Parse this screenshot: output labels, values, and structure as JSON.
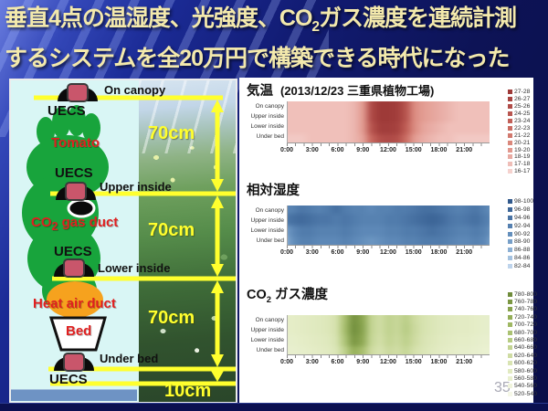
{
  "slide": {
    "title_line1_pre": "垂直4点の温湿度、光強度、CO",
    "title_line1_sub": "2",
    "title_line1_post": "ガス濃度を連続計測",
    "title_line2": "するシステムを全20万円で構築できる時代になった",
    "page_number": "35"
  },
  "diagram": {
    "on_canopy": "On  canopy",
    "uecs_top": "UECS",
    "tomato": "Tomato",
    "uecs_upper": "UECS",
    "upper_inside": "Upper inside",
    "co2_duct_pre": "CO",
    "co2_duct_sub": "2",
    "co2_duct_post": " gas duct",
    "uecs_lower": "UECS",
    "lower_inside": "Lower inside",
    "heat_air_duct": "Heat air duct",
    "bed": "Bed",
    "under_bed": "Under bed",
    "uecs_under": "UECS",
    "dim_70cm_1": "70cm",
    "dim_70cm_2": "70cm",
    "dim_70cm_3": "70cm",
    "dim_10cm": "10cm"
  },
  "chart_data": [
    {
      "type": "heatmap",
      "title_pre": "気温",
      "title_sub": "",
      "title_post": "",
      "subtitle": "(2013/12/23 三重県植物工場)",
      "rows": [
        "On canopy",
        "Upper inside",
        "Lower inside",
        "Under bed"
      ],
      "x_tick_labels": [
        "0:00",
        "3:00",
        "6:00",
        "9:00",
        "12:00",
        "15:00",
        "18:00",
        "21:00"
      ],
      "x_tick_hours": [
        0,
        3,
        6,
        9,
        12,
        15,
        18,
        21
      ],
      "x_range_hours": [
        0,
        24
      ],
      "scale": {
        "min": 16,
        "max": 28,
        "colors": [
          "#F5D2CE",
          "#EFBEB8",
          "#E8AAA2",
          "#E1988E",
          "#DA887C",
          "#D2796E",
          "#CA6C62",
          "#C26058",
          "#B95650",
          "#B04C48",
          "#A74340",
          "#9E3A38"
        ]
      },
      "series": [
        {
          "name": "On canopy",
          "values": [
            17,
            17,
            17,
            17,
            17,
            17,
            17,
            17,
            17.5,
            19,
            26,
            28,
            28,
            27.5,
            25,
            20,
            19,
            18.5,
            18,
            17.5,
            17,
            17,
            17,
            17,
            17
          ]
        },
        {
          "name": "Upper inside",
          "values": [
            17,
            17,
            17,
            17,
            17,
            17,
            17,
            17,
            17.5,
            19,
            26,
            28,
            28,
            27.5,
            25,
            20,
            19,
            18.5,
            18,
            17.5,
            17,
            17,
            17,
            17,
            17
          ]
        },
        {
          "name": "Lower inside",
          "values": [
            17,
            17,
            17,
            17,
            17,
            17,
            17,
            17,
            17.5,
            19,
            25,
            27.5,
            27.5,
            27,
            24,
            20,
            18.5,
            18,
            17.5,
            17,
            17,
            17,
            17,
            17,
            17
          ]
        },
        {
          "name": "Under bed",
          "values": [
            16.5,
            16.5,
            16.5,
            17,
            17,
            17,
            17,
            17,
            17.5,
            18.5,
            23,
            25.5,
            26,
            25.5,
            22.5,
            19,
            18,
            17.5,
            17,
            17,
            16.5,
            16.5,
            16.5,
            16.5,
            16.5
          ]
        }
      ],
      "legend": [
        {
          "label": "27-28",
          "color": "#9E3A38"
        },
        {
          "label": "26-27",
          "color": "#A74340"
        },
        {
          "label": "25-26",
          "color": "#B04C48"
        },
        {
          "label": "24-25",
          "color": "#B95650"
        },
        {
          "label": "23-24",
          "color": "#C26058"
        },
        {
          "label": "22-23",
          "color": "#CA6C62"
        },
        {
          "label": "21-22",
          "color": "#D2796E"
        },
        {
          "label": "20-21",
          "color": "#DA887C"
        },
        {
          "label": "19-20",
          "color": "#E1988E"
        },
        {
          "label": "18-19",
          "color": "#E8AAA2"
        },
        {
          "label": "17-18",
          "color": "#EFBEB8"
        },
        {
          "label": "16-17",
          "color": "#F5D2CE"
        }
      ]
    },
    {
      "type": "heatmap",
      "title_pre": "相対湿度",
      "title_sub": "",
      "title_post": "",
      "subtitle": "",
      "rows": [
        "On canopy",
        "Upper inside",
        "Lower inside",
        "Under bed"
      ],
      "x_tick_labels": [
        "0:00",
        "3:00",
        "6:00",
        "9:00",
        "12:00",
        "15:00",
        "18:00",
        "21:00"
      ],
      "x_tick_hours": [
        0,
        3,
        6,
        9,
        12,
        15,
        18,
        21
      ],
      "x_range_hours": [
        0,
        24
      ],
      "scale": {
        "min": 82,
        "max": 100,
        "colors": [
          "#BED4EC",
          "#A4C2E0",
          "#8CB0D4",
          "#779FC8",
          "#648FBC",
          "#5580B0",
          "#4973A4",
          "#3D6698",
          "#31598C"
        ]
      },
      "series": [
        {
          "name": "On canopy",
          "values": [
            92,
            93,
            95,
            94,
            93,
            94,
            96,
            94,
            93,
            93,
            92,
            93,
            93,
            94,
            94,
            95,
            96,
            96,
            95,
            94,
            93,
            94,
            95,
            93,
            91
          ]
        },
        {
          "name": "Upper inside",
          "values": [
            94,
            96,
            97,
            96,
            95,
            95,
            94,
            95,
            94,
            93,
            93,
            93,
            94,
            94,
            95,
            96,
            97,
            98,
            97,
            95,
            94,
            95,
            96,
            94,
            92
          ]
        },
        {
          "name": "Lower inside",
          "values": [
            88,
            92,
            94,
            94,
            93,
            93,
            93,
            94,
            93,
            92,
            92,
            92,
            93,
            93,
            94,
            94,
            95,
            96,
            95,
            94,
            93,
            93,
            94,
            93,
            90
          ]
        },
        {
          "name": "Under bed",
          "values": [
            86,
            91,
            93,
            93,
            92,
            92,
            92,
            93,
            92,
            91,
            90,
            91,
            92,
            92,
            93,
            93,
            94,
            94,
            94,
            93,
            92,
            92,
            93,
            92,
            88
          ]
        }
      ],
      "legend": [
        {
          "label": "98-100",
          "color": "#31598C"
        },
        {
          "label": "96-98",
          "color": "#3D6698"
        },
        {
          "label": "94-96",
          "color": "#4973A4"
        },
        {
          "label": "92-94",
          "color": "#5580B0"
        },
        {
          "label": "90-92",
          "color": "#648FBC"
        },
        {
          "label": "88-90",
          "color": "#779FC8"
        },
        {
          "label": "86-88",
          "color": "#8CB0D4"
        },
        {
          "label": "84-86",
          "color": "#A4C2E0"
        },
        {
          "label": "82-84",
          "color": "#BED4EC"
        }
      ]
    },
    {
      "type": "heatmap",
      "title_pre": "CO",
      "title_sub": "2",
      "title_post": " ガス濃度",
      "subtitle": "",
      "rows": [
        "On canopy",
        "Upper inside",
        "Lower inside",
        "Under bed"
      ],
      "x_tick_labels": [
        "0:00",
        "3:00",
        "6:00",
        "9:00",
        "12:00",
        "15:00",
        "18:00",
        "21:00"
      ],
      "x_tick_hours": [
        0,
        3,
        6,
        9,
        12,
        15,
        18,
        21
      ],
      "x_range_hours": [
        0,
        24
      ],
      "scale": {
        "min": 520,
        "max": 800,
        "colors": [
          "#F6F8E8",
          "#F0F4DC",
          "#E9F0CF",
          "#E1EAC1",
          "#D9E4B3",
          "#CFDCA3",
          "#C3D493",
          "#B7CC83",
          "#ABC273",
          "#9FB863",
          "#93AD57",
          "#87A24D",
          "#7B9743",
          "#6F8C3B"
        ]
      },
      "series": [
        {
          "name": "On canopy",
          "values": [
            575,
            575,
            580,
            585,
            590,
            595,
            615,
            700,
            790,
            750,
            650,
            625,
            655,
            640,
            665,
            630,
            610,
            600,
            590,
            585,
            580,
            580,
            575,
            570,
            570
          ]
        },
        {
          "name": "Upper inside",
          "values": [
            575,
            575,
            580,
            585,
            590,
            595,
            615,
            705,
            795,
            755,
            650,
            625,
            655,
            640,
            670,
            635,
            610,
            600,
            590,
            585,
            580,
            580,
            575,
            570,
            570
          ]
        },
        {
          "name": "Lower inside",
          "values": [
            570,
            570,
            575,
            580,
            585,
            590,
            610,
            690,
            780,
            745,
            645,
            620,
            650,
            635,
            660,
            630,
            605,
            595,
            585,
            580,
            575,
            575,
            570,
            565,
            565
          ]
        },
        {
          "name": "Under bed",
          "values": [
            565,
            565,
            570,
            575,
            580,
            585,
            600,
            660,
            730,
            700,
            630,
            610,
            635,
            625,
            645,
            615,
            600,
            590,
            580,
            575,
            570,
            570,
            565,
            560,
            560
          ]
        }
      ],
      "legend": [
        {
          "label": "780-800",
          "color": "#6F8C3B"
        },
        {
          "label": "760-780",
          "color": "#7B9743"
        },
        {
          "label": "740-760",
          "color": "#87A24D"
        },
        {
          "label": "720-740",
          "color": "#93AD57"
        },
        {
          "label": "700-720",
          "color": "#9FB863"
        },
        {
          "label": "680-700",
          "color": "#ABC273"
        },
        {
          "label": "660-680",
          "color": "#B7CC83"
        },
        {
          "label": "640-660",
          "color": "#C3D493"
        },
        {
          "label": "620-640",
          "color": "#CFDCA3"
        },
        {
          "label": "600-620",
          "color": "#D9E4B3"
        },
        {
          "label": "580-600",
          "color": "#E1EAC1"
        },
        {
          "label": "560-580",
          "color": "#E9F0CF"
        },
        {
          "label": "540-560",
          "color": "#F0F4DC"
        },
        {
          "label": "520-540",
          "color": "#F6F8E8"
        }
      ]
    }
  ]
}
